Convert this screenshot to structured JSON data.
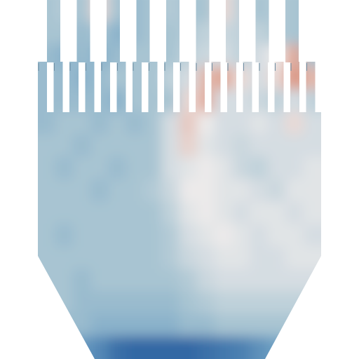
{
  "chart_data": {
    "type": "heatmap",
    "tick_labels": false,
    "zlim": [
      -1,
      1
    ],
    "cells": [
      [
        -0.3,
        -0.25,
        -0.3,
        0.1,
        -0.3,
        -0.35,
        -0.3,
        -0.25,
        -0.3,
        -0.3,
        0.1,
        -0.2,
        -0.3,
        -0.25,
        -0.3,
        -0.3
      ],
      [
        -0.3,
        -0.3,
        -0.35,
        -0.3,
        -0.4,
        -0.35,
        -0.3,
        -0.3,
        -0.25,
        -0.2,
        -0.15,
        -0.2,
        -0.2,
        -0.25,
        -0.3,
        -0.3
      ],
      [
        -0.35,
        -0.4,
        -0.35,
        -0.4,
        -0.35,
        -0.3,
        -0.3,
        -0.3,
        -0.2,
        -0.15,
        -0.1,
        -0.2,
        -0.1,
        0.0,
        0.4,
        -0.3
      ],
      [
        -0.35,
        -0.35,
        -0.4,
        -0.35,
        -0.3,
        -0.3,
        -0.3,
        -0.2,
        -0.1,
        0.3,
        0.4,
        0.1,
        -0.1,
        0.1,
        0.5,
        0.3
      ],
      [
        -0.35,
        -0.35,
        -0.35,
        -0.35,
        -0.4,
        -0.3,
        -0.3,
        -0.3,
        0.1,
        0.35,
        -0.1,
        -0.1,
        -0.15,
        -0.2,
        -0.1,
        -0.2
      ],
      [
        -0.35,
        -0.3,
        -0.3,
        -0.35,
        -0.3,
        -0.35,
        -0.3,
        -0.1,
        0.2,
        0.0,
        -0.1,
        -0.1,
        -0.05,
        -0.1,
        0.1,
        -0.1
      ],
      [
        -0.3,
        -0.3,
        -0.35,
        -0.3,
        -0.3,
        -0.3,
        -0.3,
        -0.1,
        0.15,
        -0.05,
        -0.1,
        -0.15,
        -0.1,
        -0.1,
        -0.1,
        -0.1
      ],
      [
        -0.3,
        -0.35,
        -0.3,
        -0.3,
        -0.35,
        -0.3,
        -0.3,
        -0.1,
        -0.05,
        0.0,
        -0.05,
        -0.15,
        -0.2,
        -0.1,
        -0.1,
        -0.05
      ],
      [
        -0.3,
        -0.3,
        -0.3,
        -0.35,
        -0.3,
        -0.3,
        -0.25,
        -0.15,
        0.0,
        0.0,
        -0.05,
        -0.05,
        -0.1,
        -0.15,
        -0.05,
        -0.05
      ],
      [
        -0.3,
        -0.3,
        -0.3,
        -0.3,
        -0.3,
        -0.3,
        -0.3,
        -0.2,
        -0.05,
        0.0,
        -0.05,
        -0.1,
        -0.05,
        -0.05,
        -0.1,
        -0.05
      ],
      [
        -0.3,
        -0.35,
        -0.3,
        -0.3,
        -0.3,
        -0.3,
        -0.3,
        -0.25,
        -0.1,
        -0.05,
        0.0,
        -0.05,
        -0.1,
        -0.05,
        -0.05,
        -0.1
      ],
      [
        -0.3,
        -0.3,
        -0.3,
        -0.3,
        -0.3,
        -0.3,
        -0.3,
        -0.25,
        -0.15,
        -0.1,
        -0.05,
        -0.05,
        -0.1,
        -0.1,
        -0.05,
        -0.05
      ],
      [
        -0.3,
        -0.3,
        -0.35,
        -0.3,
        -0.3,
        -0.3,
        -0.3,
        -0.3,
        -0.25,
        -0.15,
        -0.1,
        -0.1,
        -0.1,
        -0.1,
        -0.1,
        -0.1
      ],
      [
        -0.3,
        -0.3,
        -0.35,
        -0.35,
        -0.35,
        -0.35,
        -0.35,
        -0.35,
        -0.3,
        -0.25,
        -0.2,
        -0.2,
        -0.2,
        -0.2,
        -0.2,
        -0.2
      ],
      [
        -0.35,
        -0.35,
        -0.35,
        -0.4,
        -0.4,
        -0.4,
        -0.4,
        -0.4,
        -0.35,
        -0.35,
        -0.3,
        -0.3,
        -0.3,
        -0.3,
        -0.3,
        -0.3
      ],
      [
        -0.5,
        -0.5,
        -0.55,
        -0.65,
        -0.8,
        -0.85,
        -0.85,
        -0.85,
        -0.85,
        -0.8,
        -0.75,
        -0.7,
        -0.6,
        -0.5,
        -0.5,
        -0.5
      ]
    ]
  }
}
